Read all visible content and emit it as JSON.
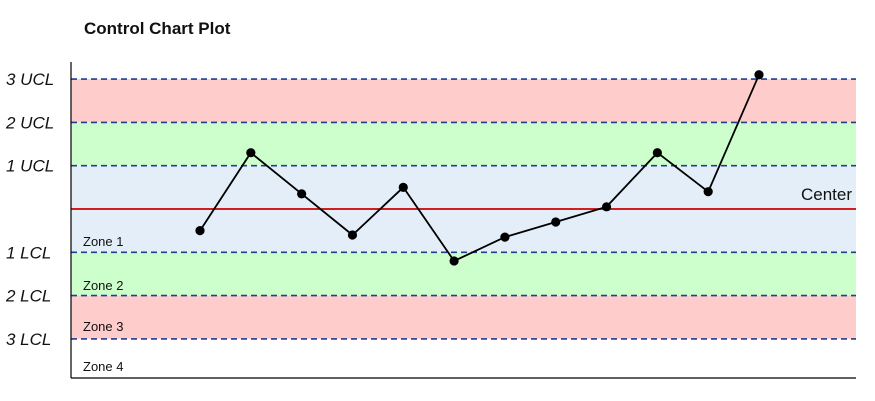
{
  "title": "Control Chart Plot",
  "colors": {
    "zone_outer": "#ffcccc",
    "zone_middle": "#ccffcc",
    "zone_inner": "#e4eef8",
    "center_line": "#cc0000",
    "limit_line": "#1f3f8f",
    "series": "#000000"
  },
  "chart_data": {
    "type": "line",
    "title": "Control Chart Plot",
    "xlabel": "",
    "ylabel": "",
    "limits": [
      {
        "label": "3 UCL",
        "sigma": 3
      },
      {
        "label": "2 UCL",
        "sigma": 2
      },
      {
        "label": "1 UCL",
        "sigma": 1
      },
      {
        "label": "1 LCL",
        "sigma": -1
      },
      {
        "label": "2 LCL",
        "sigma": -2
      },
      {
        "label": "3 LCL",
        "sigma": -3
      }
    ],
    "center_label": "Center",
    "zones": [
      "Zone 1",
      "Zone 2",
      "Zone 3",
      "Zone 4"
    ],
    "ylim": [
      -3.85,
      3.1
    ],
    "grid": false,
    "series": [
      {
        "values": [
          -0.5,
          1.3,
          0.35,
          -0.6,
          0.5,
          -1.2,
          -0.65,
          -0.3,
          0.05,
          1.3,
          0.4,
          3.1
        ]
      }
    ]
  }
}
